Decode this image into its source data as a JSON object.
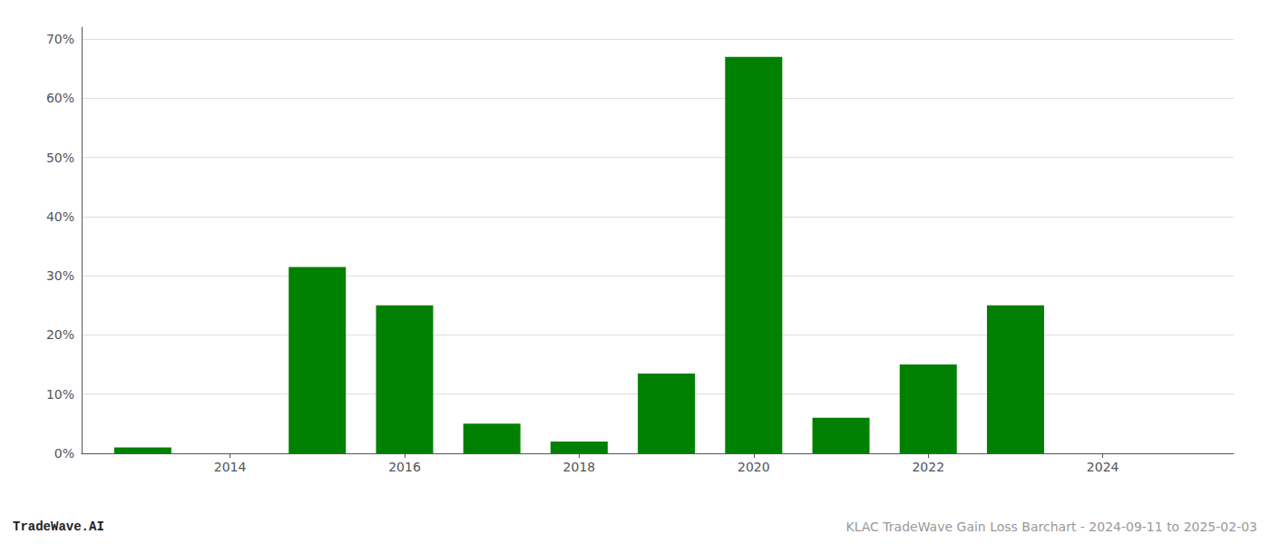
{
  "chart_data": {
    "type": "bar",
    "x": [
      2013,
      2014,
      2015,
      2016,
      2017,
      2018,
      2019,
      2020,
      2021,
      2022,
      2023,
      2024
    ],
    "values": [
      0.01,
      0.0,
      0.315,
      0.25,
      0.05,
      0.02,
      0.135,
      0.67,
      0.06,
      0.15,
      0.25,
      0.0
    ],
    "color": "#008000",
    "xlim": [
      2012.3,
      2025.5
    ],
    "xticks": [
      2014,
      2016,
      2018,
      2020,
      2022,
      2024
    ],
    "ylim": [
      0,
      0.72
    ],
    "yticks": [
      {
        "value": 0.0,
        "label": "0%"
      },
      {
        "value": 0.1,
        "label": "10%"
      },
      {
        "value": 0.2,
        "label": "20%"
      },
      {
        "value": 0.3,
        "label": "30%"
      },
      {
        "value": 0.4,
        "label": "40%"
      },
      {
        "value": 0.5,
        "label": "50%"
      },
      {
        "value": 0.6,
        "label": "60%"
      },
      {
        "value": 0.7,
        "label": "70%"
      }
    ],
    "grid": true,
    "annotations": [
      "TradeWave.AI",
      "KLAC TradeWave Gain Loss Barchart - 2024-09-11 to 2025-02-03"
    ]
  }
}
